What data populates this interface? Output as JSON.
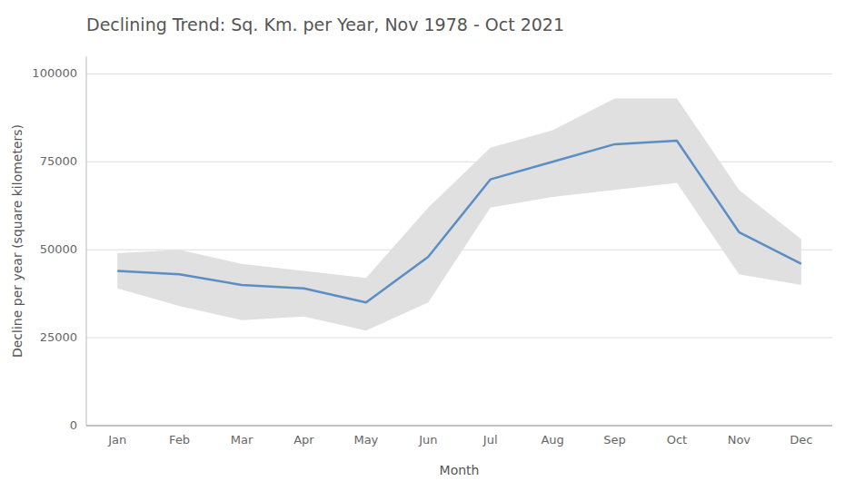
{
  "chart_data": {
    "type": "line",
    "title": "Declining Trend: Sq. Km. per Year, Nov 1978 - Oct 2021",
    "xlabel": "Month",
    "ylabel": "Decline per year (square kilometers)",
    "categories": [
      "Jan",
      "Feb",
      "Mar",
      "Apr",
      "May",
      "Jun",
      "Jul",
      "Aug",
      "Sep",
      "Oct",
      "Nov",
      "Dec"
    ],
    "values": [
      44000,
      43000,
      40000,
      39000,
      35000,
      48000,
      70000,
      75000,
      80000,
      81000,
      55000,
      46000
    ],
    "color": "#5b8ec4",
    "band": {
      "lower": [
        39000,
        34000,
        30000,
        31000,
        27000,
        35000,
        62000,
        65000,
        67000,
        69000,
        43000,
        40000
      ],
      "upper": [
        49000,
        50000,
        46000,
        44000,
        42000,
        62000,
        79000,
        84000,
        93000,
        93000,
        67000,
        53000
      ],
      "color": "#e0e0e0"
    },
    "ylim": [
      0,
      105000
    ],
    "yticks": [
      0,
      25000,
      50000,
      75000,
      100000
    ],
    "grid": true
  }
}
